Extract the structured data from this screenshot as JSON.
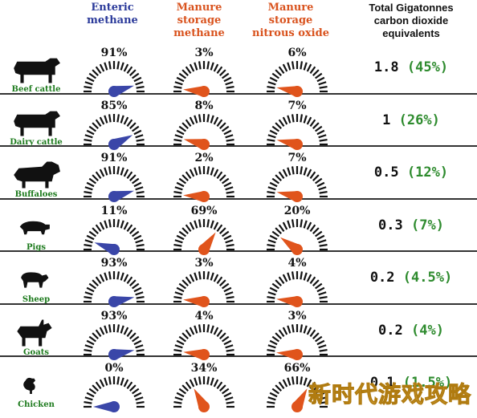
{
  "header": {
    "enteric": "Enteric\nmethane",
    "manure_methane": "Manure\nstorage\nmethane",
    "manure_n2o": "Manure\nstorage\nnitrous oxide",
    "total": "Total Gigatonnes\ncarbon dioxide\nequivalents"
  },
  "colors": {
    "enteric": "#3a46a8",
    "manure": "#e0541c",
    "total_share": "#2e8b2e",
    "animal_label": "#1c7a1c"
  },
  "chart_data": {
    "type": "table",
    "title": "",
    "columns": [
      "Enteric methane",
      "Manure storage methane",
      "Manure storage nitrous oxide",
      "Total Gigatonnes carbon dioxide equivalents"
    ],
    "rows": [
      {
        "animal": "Beef cattle",
        "icon": "cow-icon",
        "enteric": 91,
        "manure_methane": 3,
        "manure_n2o": 6,
        "total": "1.8",
        "total_share": "(45%)"
      },
      {
        "animal": "Dairy cattle",
        "icon": "cow-icon",
        "enteric": 85,
        "manure_methane": 8,
        "manure_n2o": 7,
        "total": "1",
        "total_share": "(26%)"
      },
      {
        "animal": "Buffaloes",
        "icon": "buffalo-icon",
        "enteric": 91,
        "manure_methane": 2,
        "manure_n2o": 7,
        "total": "0.5",
        "total_share": "(12%)"
      },
      {
        "animal": "Pigs",
        "icon": "pig-icon",
        "enteric": 11,
        "manure_methane": 69,
        "manure_n2o": 20,
        "total": "0.3",
        "total_share": "(7%)"
      },
      {
        "animal": "Sheep",
        "icon": "sheep-icon",
        "enteric": 93,
        "manure_methane": 3,
        "manure_n2o": 4,
        "total": "0.2",
        "total_share": "(4.5%)"
      },
      {
        "animal": "Goats",
        "icon": "goat-icon",
        "enteric": 93,
        "manure_methane": 4,
        "manure_n2o": 3,
        "total": "0.2",
        "total_share": "(4%)"
      },
      {
        "animal": "Chicken",
        "icon": "chicken-icon",
        "enteric": 0,
        "manure_methane": 34,
        "manure_n2o": 66,
        "total": "0.1",
        "total_share": "(1.5%)"
      }
    ],
    "unit": "%"
  },
  "watermark": "新时代游戏攻略"
}
